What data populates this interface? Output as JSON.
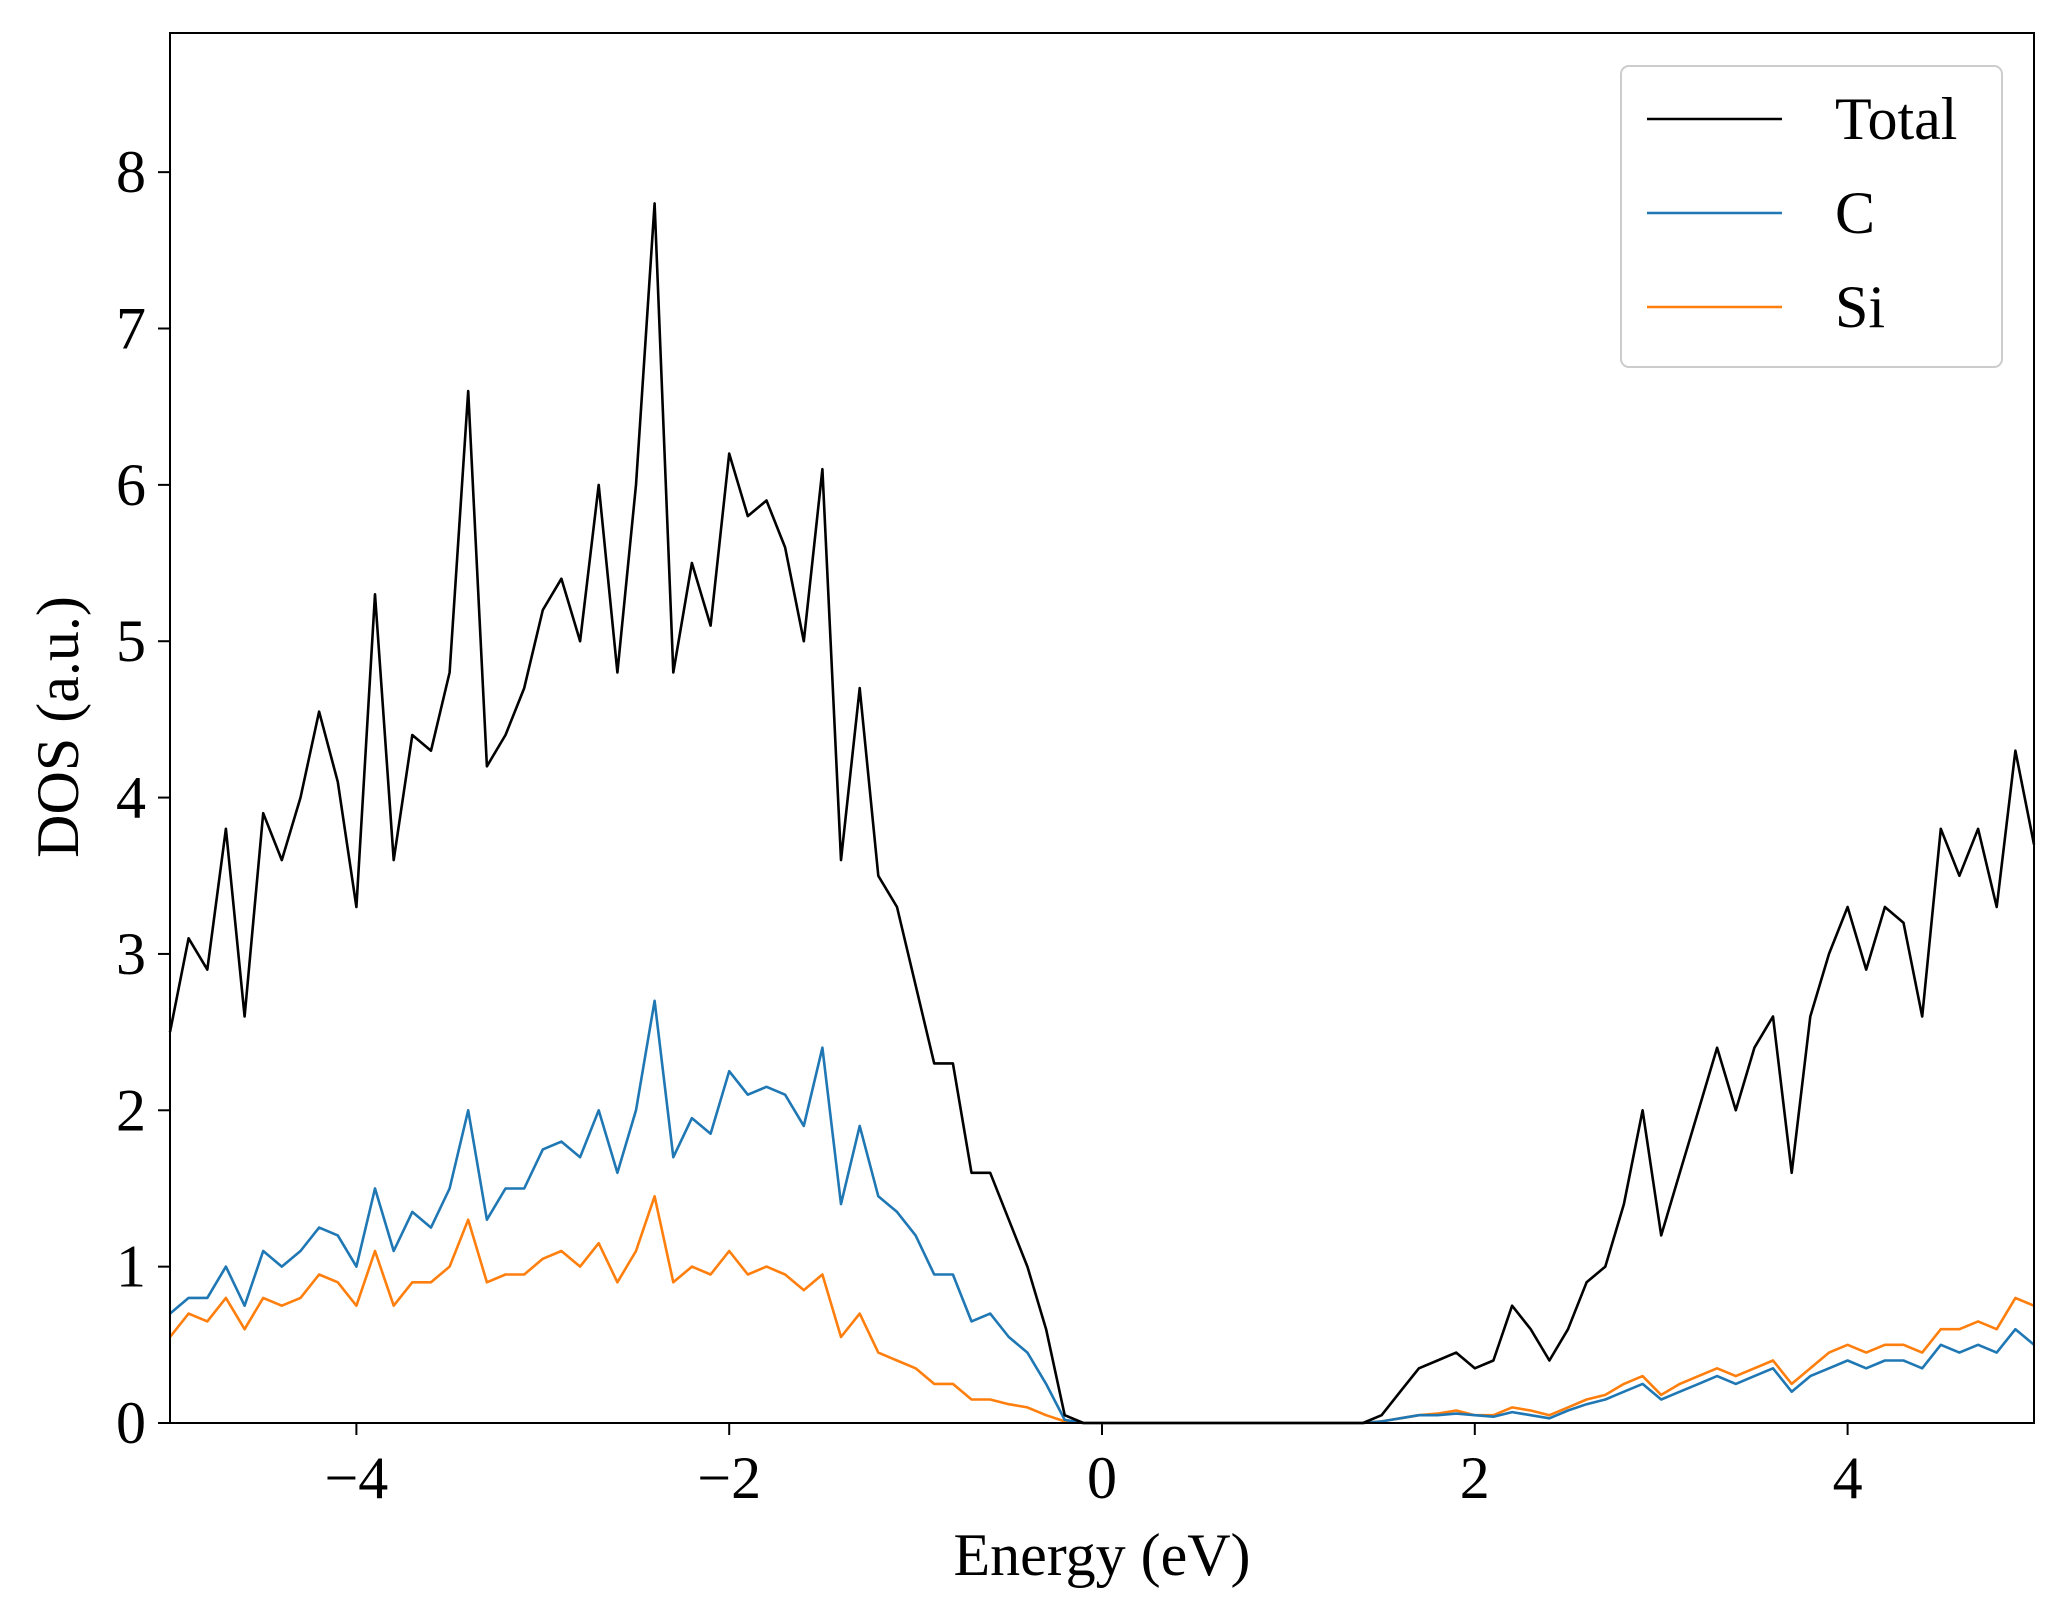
{
  "chart_data": {
    "type": "line",
    "xlabel": "Energy (eV)",
    "ylabel": "DOS (a.u.)",
    "x": [
      -5,
      -4.9,
      -4.8,
      -4.7,
      -4.6,
      -4.5,
      -4.4,
      -4.3,
      -4.2,
      -4.1,
      -4,
      -3.9,
      -3.8,
      -3.7,
      -3.6,
      -3.5,
      -3.4,
      -3.3,
      -3.2,
      -3.1,
      -3,
      -2.9,
      -2.8,
      -2.7,
      -2.6,
      -2.5,
      -2.4,
      -2.3,
      -2.2,
      -2.1,
      -2,
      -1.9,
      -1.8,
      -1.7,
      -1.6,
      -1.5,
      -1.4,
      -1.3,
      -1.2,
      -1.1,
      -1,
      -0.9,
      -0.8,
      -0.7,
      -0.6,
      -0.5,
      -0.4,
      -0.3,
      -0.2,
      -0.1,
      0,
      0.1,
      0.2,
      0.3,
      0.4,
      0.5,
      0.6,
      0.7,
      0.8,
      0.9,
      1,
      1.1,
      1.2,
      1.3,
      1.4,
      1.5,
      1.6,
      1.7,
      1.8,
      1.9,
      2,
      2.1,
      2.2,
      2.3,
      2.4,
      2.5,
      2.6,
      2.7,
      2.8,
      2.9,
      3,
      3.1,
      3.2,
      3.3,
      3.4,
      3.5,
      3.6,
      3.7,
      3.8,
      3.9,
      4,
      4.1,
      4.2,
      4.3,
      4.4,
      4.5,
      4.6,
      4.7,
      4.8,
      4.9,
      5
    ],
    "series": [
      {
        "name": "Total",
        "color": "#000000",
        "values": [
          2.5,
          3.1,
          2.9,
          3.8,
          2.6,
          3.9,
          3.6,
          4.0,
          4.55,
          4.1,
          3.3,
          5.3,
          3.6,
          4.4,
          4.3,
          4.8,
          6.6,
          4.2,
          4.4,
          4.7,
          5.2,
          5.4,
          5.0,
          6.0,
          4.8,
          6.0,
          7.8,
          4.8,
          5.5,
          5.1,
          6.2,
          5.8,
          5.9,
          5.6,
          5.0,
          6.1,
          3.6,
          4.7,
          3.5,
          3.3,
          2.8,
          2.3,
          2.3,
          1.6,
          1.6,
          1.3,
          1.0,
          0.6,
          0.05,
          0,
          0,
          0,
          0,
          0,
          0,
          0,
          0,
          0,
          0,
          0,
          0,
          0,
          0,
          0,
          0,
          0.05,
          0.2,
          0.35,
          0.4,
          0.45,
          0.35,
          0.4,
          0.75,
          0.6,
          0.4,
          0.6,
          0.9,
          1.0,
          1.4,
          2.0,
          1.2,
          1.6,
          2.0,
          2.4,
          2.0,
          2.4,
          2.6,
          1.6,
          2.6,
          3.0,
          3.3,
          2.9,
          3.3,
          3.2,
          2.6,
          3.8,
          3.5,
          3.8,
          3.3,
          4.3,
          3.7
        ]
      },
      {
        "name": "C",
        "color": "#1f77b4",
        "values": [
          0.7,
          0.8,
          0.8,
          1.0,
          0.75,
          1.1,
          1.0,
          1.1,
          1.25,
          1.2,
          1.0,
          1.5,
          1.1,
          1.35,
          1.25,
          1.5,
          2.0,
          1.3,
          1.5,
          1.5,
          1.75,
          1.8,
          1.7,
          2.0,
          1.6,
          2.0,
          2.7,
          1.7,
          1.95,
          1.85,
          2.25,
          2.1,
          2.15,
          2.1,
          1.9,
          2.4,
          1.4,
          1.9,
          1.45,
          1.35,
          1.2,
          0.95,
          0.95,
          0.65,
          0.7,
          0.55,
          0.45,
          0.25,
          0.02,
          0,
          0,
          0,
          0,
          0,
          0,
          0,
          0,
          0,
          0,
          0,
          0,
          0,
          0,
          0,
          0,
          0.01,
          0.03,
          0.05,
          0.05,
          0.06,
          0.05,
          0.04,
          0.07,
          0.05,
          0.03,
          0.08,
          0.12,
          0.15,
          0.2,
          0.25,
          0.15,
          0.2,
          0.25,
          0.3,
          0.25,
          0.3,
          0.35,
          0.2,
          0.3,
          0.35,
          0.4,
          0.35,
          0.4,
          0.4,
          0.35,
          0.5,
          0.45,
          0.5,
          0.45,
          0.6,
          0.5
        ]
      },
      {
        "name": "Si",
        "color": "#ff7f0e",
        "values": [
          0.55,
          0.7,
          0.65,
          0.8,
          0.6,
          0.8,
          0.75,
          0.8,
          0.95,
          0.9,
          0.75,
          1.1,
          0.75,
          0.9,
          0.9,
          1.0,
          1.3,
          0.9,
          0.95,
          0.95,
          1.05,
          1.1,
          1.0,
          1.15,
          0.9,
          1.1,
          1.45,
          0.9,
          1.0,
          0.95,
          1.1,
          0.95,
          1.0,
          0.95,
          0.85,
          0.95,
          0.55,
          0.7,
          0.45,
          0.4,
          0.35,
          0.25,
          0.25,
          0.15,
          0.15,
          0.12,
          0.1,
          0.05,
          0.01,
          0,
          0,
          0,
          0,
          0,
          0,
          0,
          0,
          0,
          0,
          0,
          0,
          0,
          0,
          0,
          0,
          0.01,
          0.03,
          0.05,
          0.06,
          0.08,
          0.05,
          0.05,
          0.1,
          0.08,
          0.05,
          0.1,
          0.15,
          0.18,
          0.25,
          0.3,
          0.18,
          0.25,
          0.3,
          0.35,
          0.3,
          0.35,
          0.4,
          0.25,
          0.35,
          0.45,
          0.5,
          0.45,
          0.5,
          0.5,
          0.45,
          0.6,
          0.6,
          0.65,
          0.6,
          0.8,
          0.75
        ]
      }
    ],
    "xlim": [
      -5,
      5
    ],
    "xticks": [
      {
        "value": -4,
        "label": "−4"
      },
      {
        "value": -2,
        "label": "−2"
      },
      0,
      2,
      4
    ],
    "ylim": [
      0,
      8.89
    ],
    "yticks": [
      0,
      1,
      2,
      3,
      4,
      5,
      6,
      7,
      8
    ],
    "legend": "upper right"
  }
}
